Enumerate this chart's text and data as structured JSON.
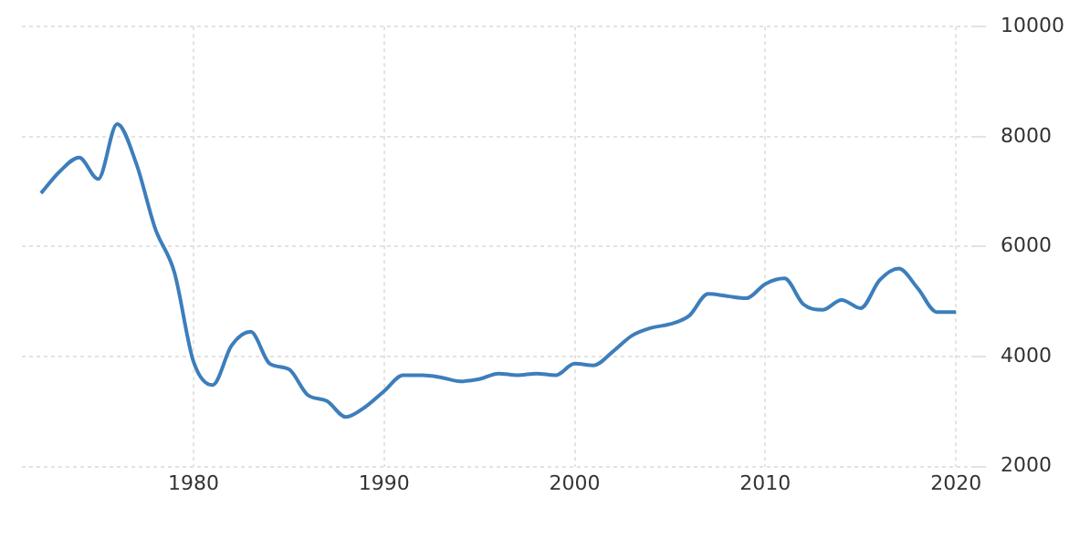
{
  "chart_data": {
    "type": "line",
    "x": [
      1972,
      1973,
      1974,
      1975,
      1976,
      1977,
      1978,
      1979,
      1980,
      1981,
      1982,
      1983,
      1984,
      1985,
      1986,
      1987,
      1988,
      1989,
      1990,
      1991,
      1992,
      1993,
      1994,
      1995,
      1996,
      1997,
      1998,
      1999,
      2000,
      2001,
      2002,
      2003,
      2004,
      2005,
      2006,
      2007,
      2008,
      2009,
      2010,
      2011,
      2012,
      2013,
      2014,
      2015,
      2016,
      2017,
      2018,
      2019,
      2020
    ],
    "series": [
      {
        "color": "#3d7ebb",
        "values": [
          6970,
          7370,
          7620,
          7230,
          8230,
          7510,
          6320,
          5530,
          3910,
          3480,
          4200,
          4450,
          3870,
          3770,
          3300,
          3190,
          2900,
          3080,
          3370,
          3660,
          3660,
          3620,
          3550,
          3590,
          3690,
          3660,
          3690,
          3660,
          3870,
          3840,
          4090,
          4380,
          4520,
          4590,
          4740,
          5140,
          5100,
          5060,
          5320,
          5420,
          4950,
          4850,
          5030,
          4880,
          5390,
          5600,
          5240,
          4810,
          4810
        ]
      }
    ],
    "xlim": [
      1971,
      2021
    ],
    "xticks": [
      1980,
      1990,
      2000,
      2010,
      2020
    ],
    "ylim": [
      2000,
      10000
    ],
    "yticks": [
      2000,
      4000,
      6000,
      8000,
      10000
    ],
    "grid": true,
    "legend": false,
    "marker": "none",
    "line_style": "solid"
  }
}
